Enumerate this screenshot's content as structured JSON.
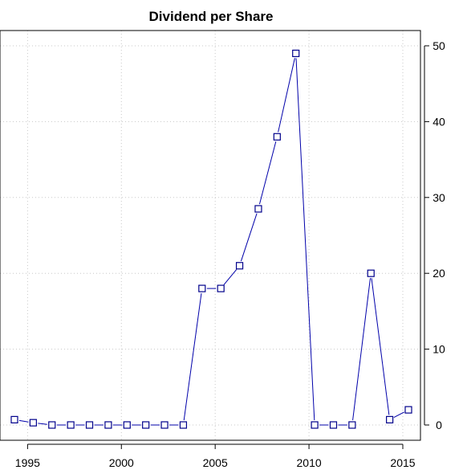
{
  "chart_data": {
    "type": "line",
    "title": "Dividend per Share",
    "xlabel": "",
    "ylabel": "",
    "xlim": [
      1994.3,
      2015.3
    ],
    "ylim": [
      0,
      50
    ],
    "x_ticks": [
      1995,
      2000,
      2005,
      2010,
      2015
    ],
    "y_ticks": [
      0,
      10,
      20,
      30,
      40,
      50
    ],
    "y_axis_side": "right",
    "grid": true,
    "series": [
      {
        "color": "#00008b",
        "marker": "open-square",
        "x": [
          1994.3,
          1995.3,
          1996.3,
          1997.3,
          1998.3,
          1999.3,
          2000.3,
          2001.3,
          2002.3,
          2003.3,
          2004.3,
          2005.3,
          2006.3,
          2007.3,
          2008.3,
          2009.3,
          2010.3,
          2011.3,
          2012.3,
          2013.3,
          2014.3,
          2015.3
        ],
        "y": [
          0.7,
          0.3,
          0,
          0,
          0,
          0,
          0,
          0,
          0,
          0,
          18,
          18,
          21,
          28.5,
          38,
          49,
          0,
          0,
          0,
          20,
          0.7,
          2
        ]
      }
    ]
  }
}
